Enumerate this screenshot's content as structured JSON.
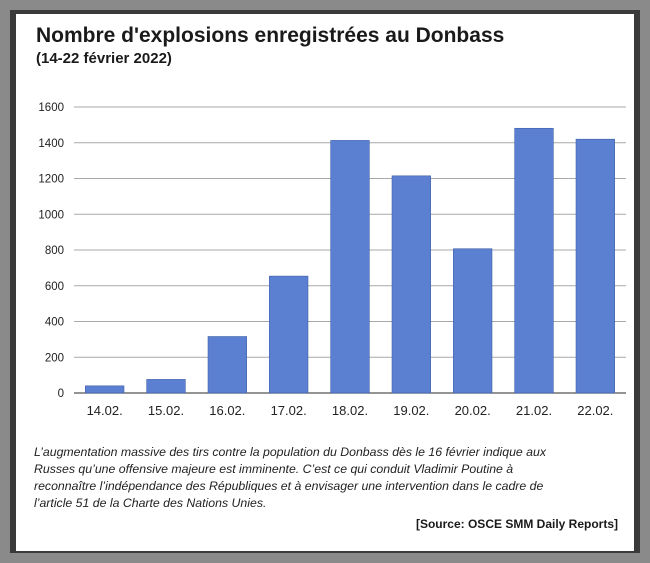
{
  "chart_data": {
    "type": "bar",
    "title": "Nombre d'explosions enregistrées au Donbass",
    "subtitle": "(14-22 février 2022)",
    "categories": [
      "14.02.",
      "15.02.",
      "16.02.",
      "17.02.",
      "18.02.",
      "19.02.",
      "20.02.",
      "21.02.",
      "22.02."
    ],
    "values": [
      40,
      76,
      316,
      654,
      1413,
      1215,
      807,
      1481,
      1420
    ],
    "yticks": [
      0,
      200,
      400,
      600,
      800,
      1000,
      1200,
      1400,
      1600
    ],
    "ylim": [
      0,
      1600
    ],
    "grid": true,
    "bar_color": "#5b7fd1"
  },
  "caption_lines": [
    "L’augmentation massive des tirs contre la population du Donbass dès le 16 février indique aux",
    "Russes qu’une offensive majeure est imminente. C’est ce qui conduit Vladimir Poutine à",
    "reconnaître l’indépendance des Républiques et à envisager une intervention dans le cadre de",
    "l’article 51 de la Charte des Nations Unies."
  ],
  "source": "[Source: OSCE SMM Daily Reports]"
}
